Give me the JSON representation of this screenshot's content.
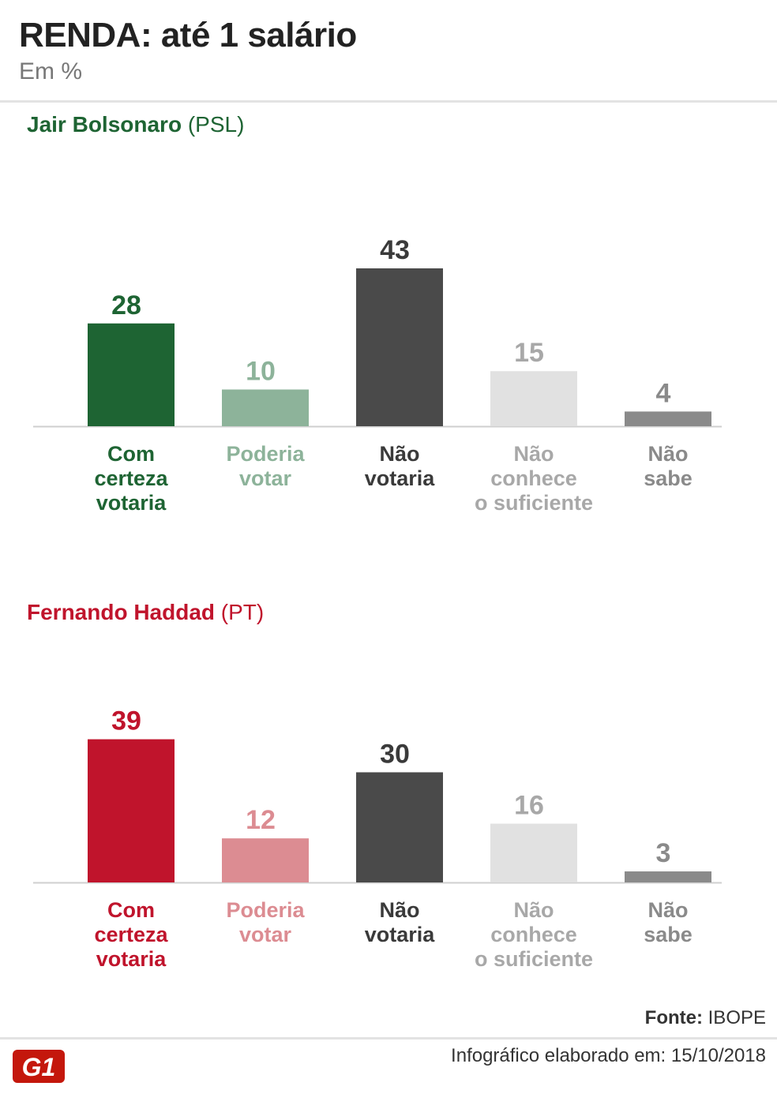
{
  "header": {
    "title": "RENDA: até 1 salário",
    "subtitle": "Em %"
  },
  "charts": [
    {
      "candidate_name": "Jair Bolsonaro",
      "party": "(PSL)",
      "name_color": "#1e6433"
    },
    {
      "candidate_name": "Fernando Haddad",
      "party": "(PT)",
      "name_color": "#c0142c"
    }
  ],
  "chart_data": [
    {
      "type": "bar",
      "categories": [
        "Com certeza votaria",
        "Poderia votar",
        "Não votaria",
        "Não conhece o suficiente",
        "Não sabe"
      ],
      "category_lines": [
        [
          "Com",
          "certeza",
          "votaria"
        ],
        [
          "Poderia",
          "votar"
        ],
        [
          "Não",
          "votaria"
        ],
        [
          "Não",
          "conhece",
          "o suficiente"
        ],
        [
          "Não",
          "sabe"
        ]
      ],
      "values": [
        28,
        10,
        43,
        15,
        4
      ],
      "colors": [
        "#1e6433",
        "#8db39a",
        "#4a4a4a",
        "#e1e1e1",
        "#8a8a8a"
      ],
      "label_colors": [
        "#1e6433",
        "#8db39a",
        "#3a3a3a",
        "#a8a8a8",
        "#8a8a8a"
      ],
      "title": "Jair Bolsonaro (PSL)",
      "ylim": [
        0,
        43
      ]
    },
    {
      "type": "bar",
      "categories": [
        "Com certeza votaria",
        "Poderia votar",
        "Não votaria",
        "Não conhece o suficiente",
        "Não sabe"
      ],
      "category_lines": [
        [
          "Com",
          "certeza",
          "votaria"
        ],
        [
          "Poderia",
          "votar"
        ],
        [
          "Não",
          "votaria"
        ],
        [
          "Não",
          "conhece",
          "o suficiente"
        ],
        [
          "Não",
          "sabe"
        ]
      ],
      "values": [
        39,
        12,
        30,
        16,
        3
      ],
      "colors": [
        "#c0142c",
        "#dc8c92",
        "#4a4a4a",
        "#e1e1e1",
        "#8a8a8a"
      ],
      "label_colors": [
        "#c0142c",
        "#dc8c92",
        "#3a3a3a",
        "#a8a8a8",
        "#8a8a8a"
      ],
      "title": "Fernando Haddad (PT)",
      "ylim": [
        0,
        43
      ]
    }
  ],
  "source": {
    "label": "Fonte:",
    "value": "IBOPE"
  },
  "footer": {
    "text": "Infográfico elaborado em: 15/10/2018"
  },
  "logo": {
    "text": "G1",
    "color": "#c4170c"
  }
}
